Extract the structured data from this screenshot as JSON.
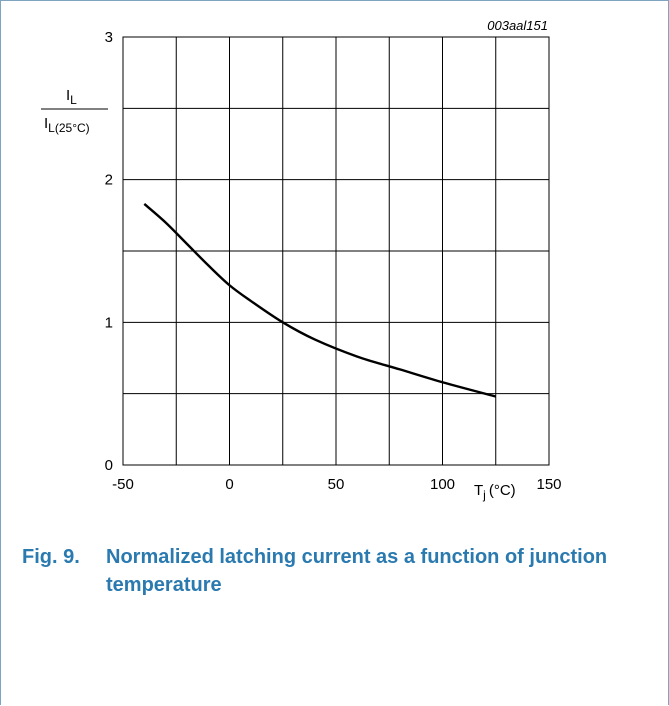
{
  "chart_data": {
    "type": "line",
    "code": "003aal151",
    "xlabel": {
      "main": "T",
      "sub": "j",
      "unit": "(°C)"
    },
    "ylabel": {
      "num_main": "I",
      "num_sub": "L",
      "den_main": "I",
      "den_sub": "L(25°C)"
    },
    "xlim": [
      -50,
      150
    ],
    "ylim": [
      0,
      3
    ],
    "x_ticks": [
      -50,
      0,
      50,
      100,
      150
    ],
    "y_ticks": [
      0,
      1,
      2,
      3
    ],
    "x_tick_labels": [
      "-50",
      "0",
      "50",
      "100",
      "150"
    ],
    "y_tick_labels": [
      "0",
      "1",
      "2",
      "3"
    ],
    "x_grid_step": 25,
    "y_grid_step": 0.5,
    "grid": true,
    "series": [
      {
        "x": [
          -40,
          -30,
          -20,
          -10,
          0,
          10,
          25,
          40,
          60,
          80,
          100,
          125
        ],
        "y": [
          1.83,
          1.7,
          1.55,
          1.4,
          1.26,
          1.15,
          1.0,
          0.88,
          0.76,
          0.67,
          0.58,
          0.48
        ]
      }
    ]
  },
  "caption": {
    "number": "Fig. 9.",
    "text": "Normalized latching current as a function of junction temperature"
  }
}
